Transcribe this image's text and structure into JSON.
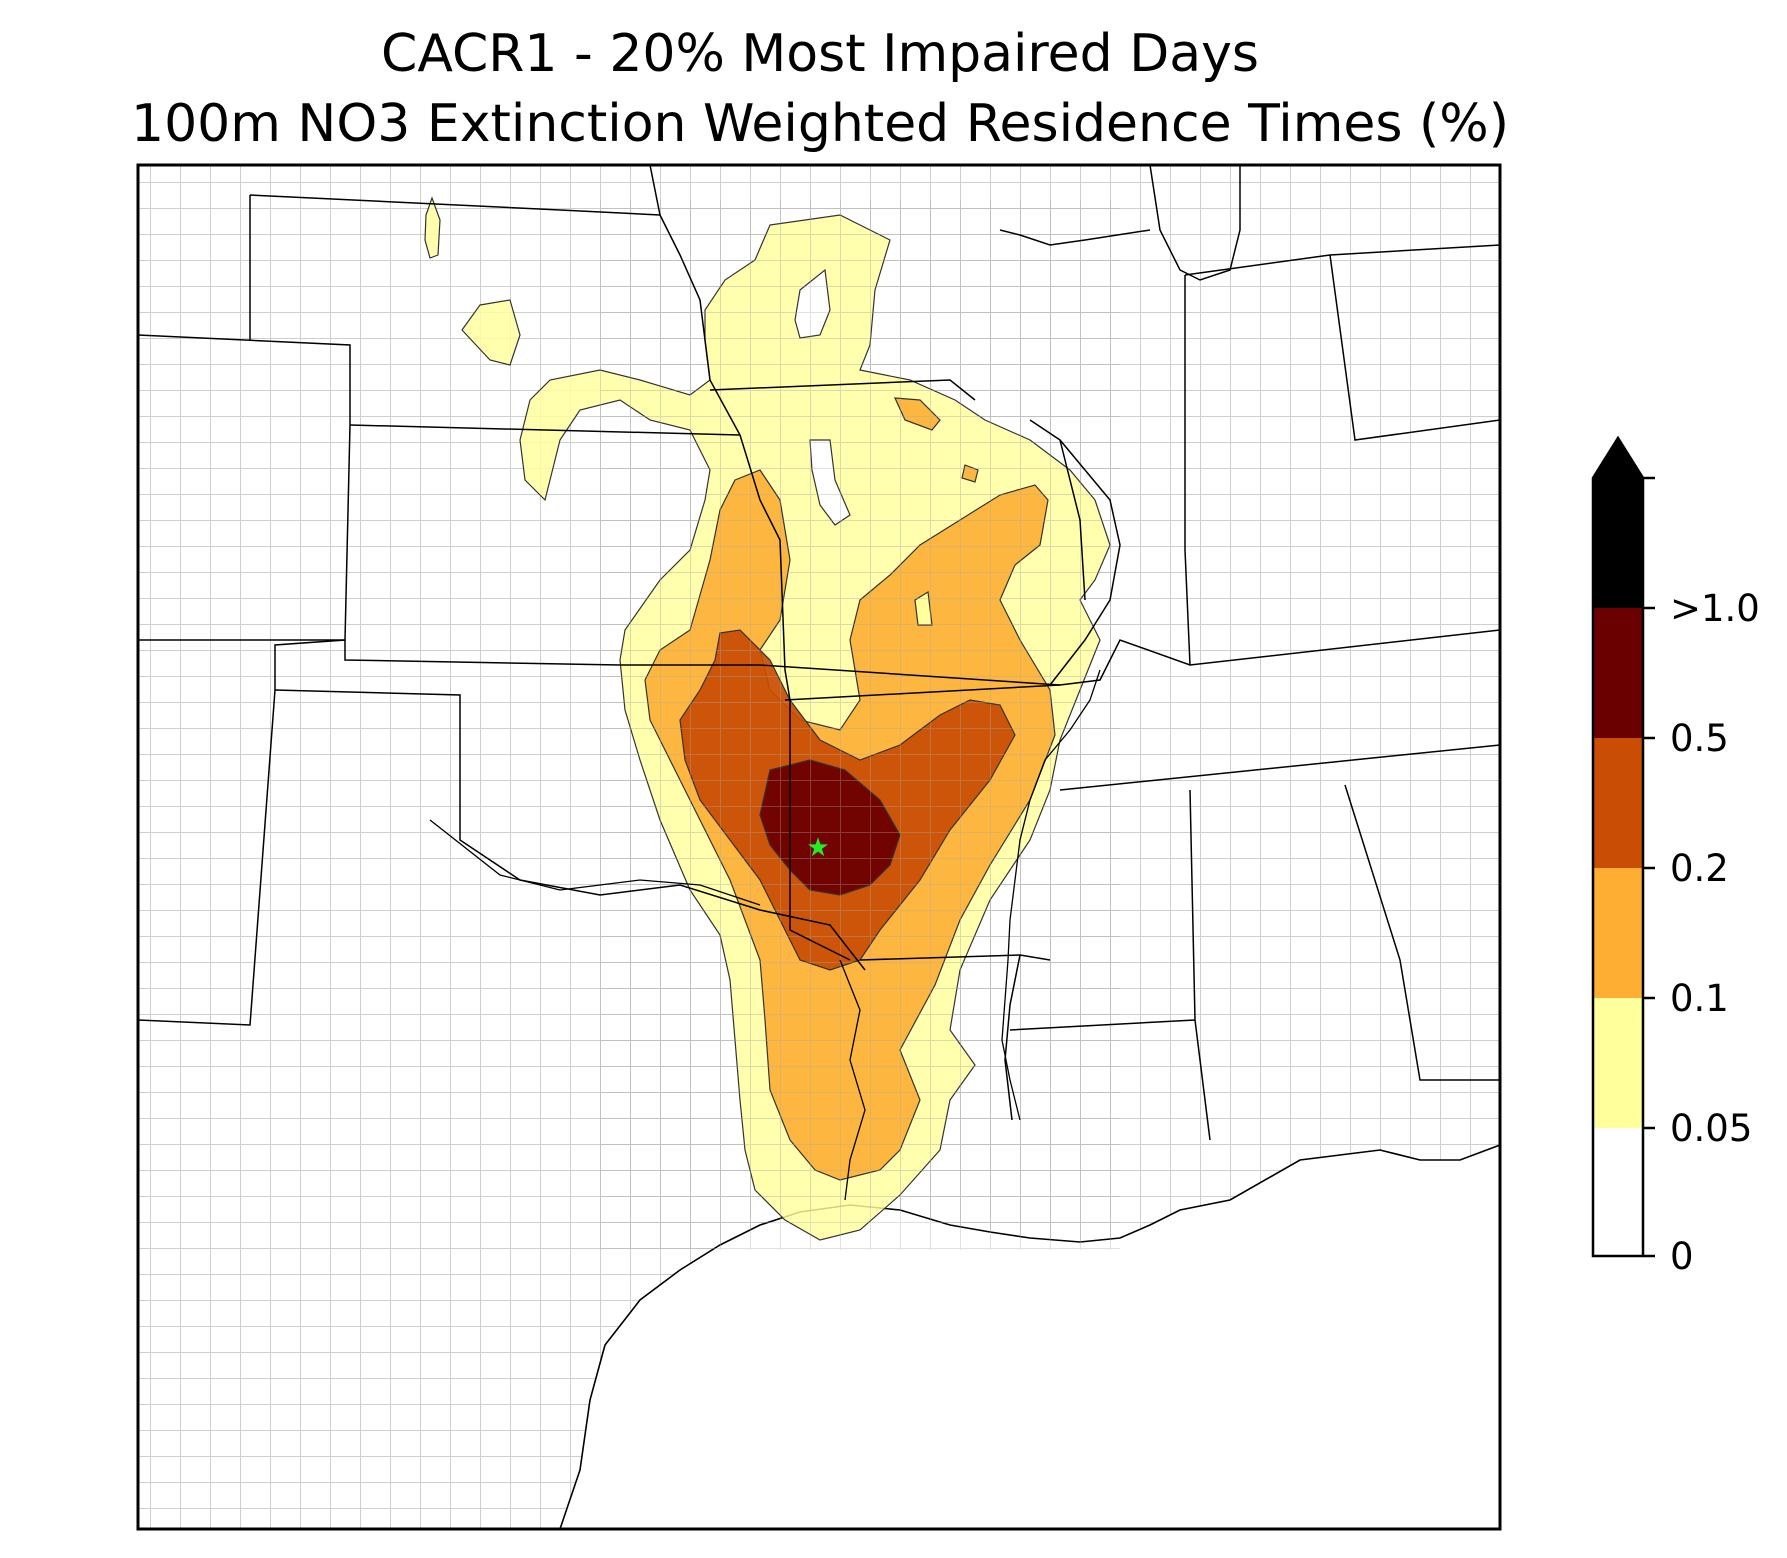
{
  "title": {
    "line1": "CACR1 - 20% Most Impaired Days",
    "line2": "100m NO3 Extinction Weighted Residence Times (%)"
  },
  "map": {
    "region": "South-central United States",
    "site_marker": {
      "shape": "star",
      "color": "#22ee22"
    },
    "boundaries": {
      "state_color": "#000000",
      "county_color": "#a8a8a8"
    }
  },
  "colorbar": {
    "extend": "max",
    "levels": [
      {
        "min": 0,
        "max": 0.05,
        "color": "#ffffff"
      },
      {
        "min": 0.05,
        "max": 0.1,
        "color": "#ffff9c"
      },
      {
        "min": 0.1,
        "max": 0.2,
        "color": "#fdae33"
      },
      {
        "min": 0.2,
        "max": 0.5,
        "color": "#c94d05"
      },
      {
        "min": 0.5,
        "max": 1.0,
        "color": "#6b0000"
      }
    ],
    "over_color": "#000000",
    "tick_labels": [
      "0",
      "0.05",
      "0.1",
      "0.2",
      "0.5",
      ">1.0"
    ]
  }
}
